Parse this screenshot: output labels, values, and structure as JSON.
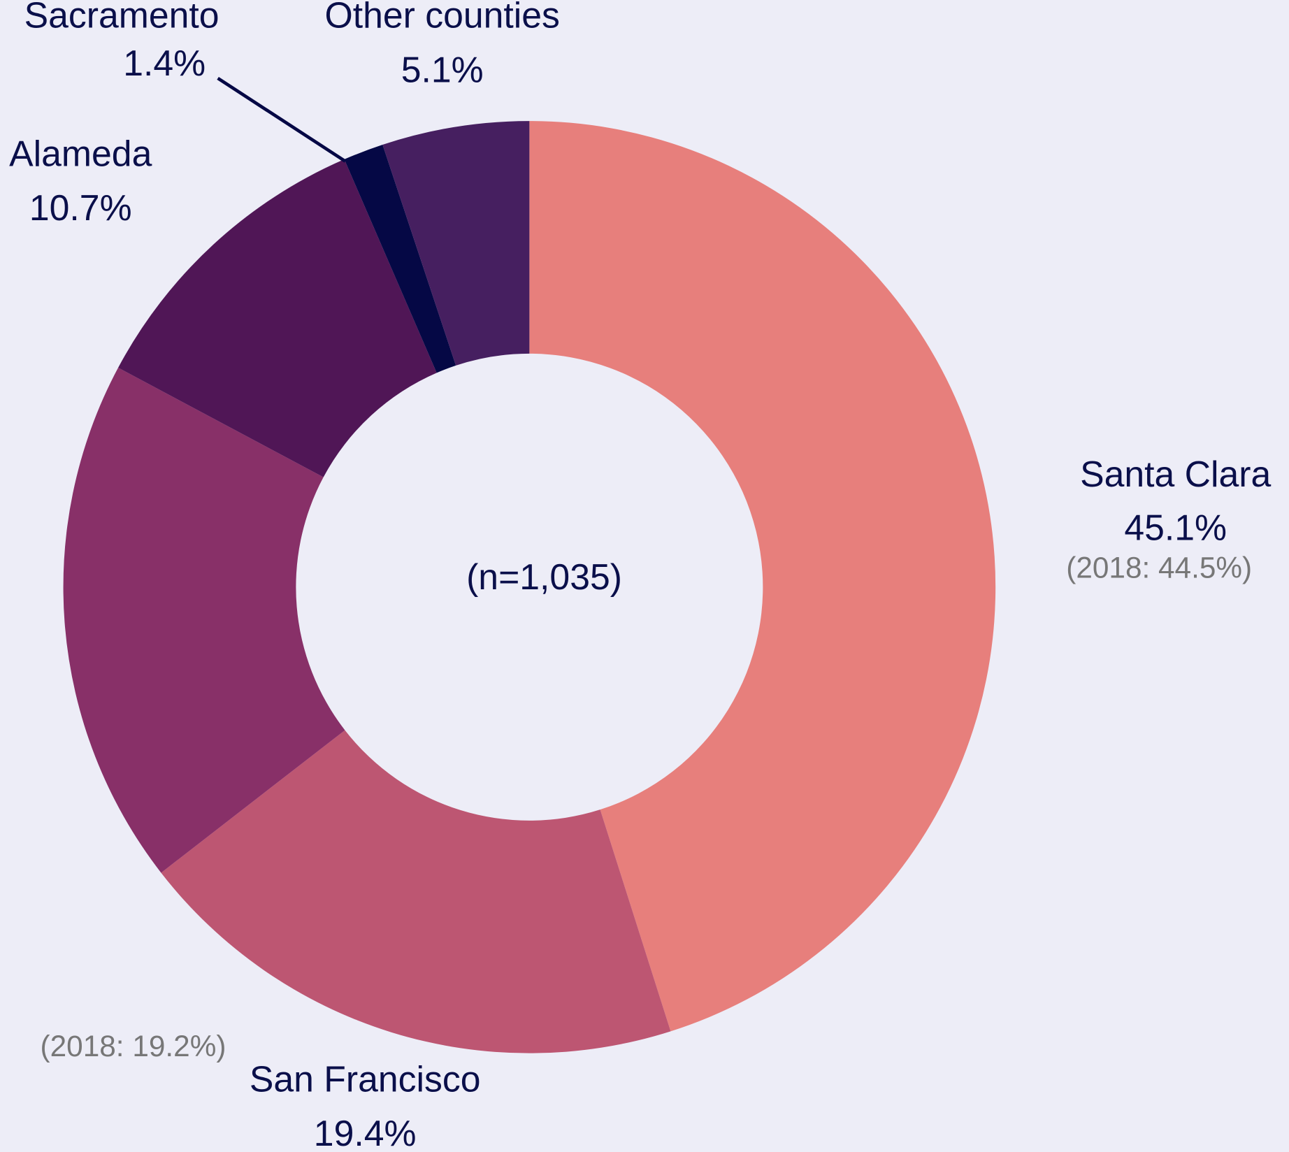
{
  "chart_data": {
    "type": "pie",
    "donut": true,
    "center_label": "(n=1,035)",
    "categories": [
      "Santa Clara",
      "San Francisco",
      null,
      "Alameda",
      "Sacramento",
      "Other counties"
    ],
    "values": [
      45.1,
      19.4,
      18.3,
      10.7,
      1.4,
      5.1
    ],
    "value_labels": [
      "45.1%",
      "19.4%",
      null,
      "10.7%",
      "1.4%",
      "5.1%"
    ],
    "colors": [
      "#e77f7c",
      "#bd5672",
      "#883068",
      "#501656",
      "#050845",
      "#461f60"
    ],
    "annotations": [
      {
        "text": "(2018: 44.5%)"
      },
      {
        "text": "(2018: 19.2%)"
      }
    ]
  }
}
